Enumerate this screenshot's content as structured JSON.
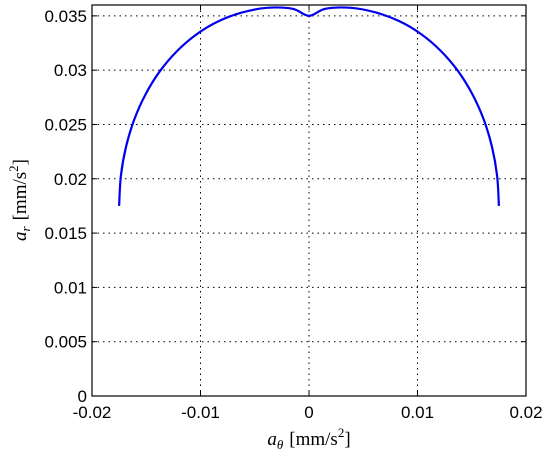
{
  "chart_data": {
    "type": "line",
    "title": "",
    "xlabel": {
      "symbol": "a",
      "subscript": "θ",
      "unit_open": "[mm/s",
      "unit_power": "2",
      "unit_close": "]"
    },
    "ylabel": {
      "symbol": "a",
      "subscript": "r",
      "unit_open": "[mm/s",
      "unit_power": "2",
      "unit_close": "]"
    },
    "xlim": [
      -0.02,
      0.02
    ],
    "ylim": [
      0,
      0.036
    ],
    "xticks": [
      -0.02,
      -0.01,
      0,
      0.01,
      0.02
    ],
    "xtick_labels": [
      "-0.02",
      "-0.01",
      "0",
      "0.01",
      "0.02"
    ],
    "yticks": [
      0,
      0.005,
      0.01,
      0.015,
      0.02,
      0.025,
      0.03,
      0.035
    ],
    "ytick_labels": [
      "0",
      "0.005",
      "0.01",
      "0.015",
      "0.02",
      "0.025",
      "0.03",
      "0.035"
    ],
    "grid": true,
    "series": [
      {
        "color": "#0000ee",
        "x": [
          -0.0175,
          -0.01734,
          -0.01687,
          -0.0161,
          -0.01504,
          -0.01371,
          -0.01213,
          -0.01032,
          -0.00832,
          -0.00616,
          -0.00387,
          -0.0015,
          0,
          0.0015,
          0.00387,
          0.00616,
          0.00832,
          0.01032,
          0.01213,
          0.01371,
          0.01504,
          0.0161,
          0.01687,
          0.01734,
          0.0175
        ],
        "y": [
          0.0175,
          0.02025,
          0.02292,
          0.02547,
          0.02782,
          0.02995,
          0.03179,
          0.03333,
          0.03451,
          0.03531,
          0.03574,
          0.03565,
          0.035,
          0.03565,
          0.03574,
          0.03531,
          0.03451,
          0.03333,
          0.03179,
          0.02995,
          0.02782,
          0.02547,
          0.02292,
          0.02025,
          0.0175
        ]
      }
    ]
  }
}
